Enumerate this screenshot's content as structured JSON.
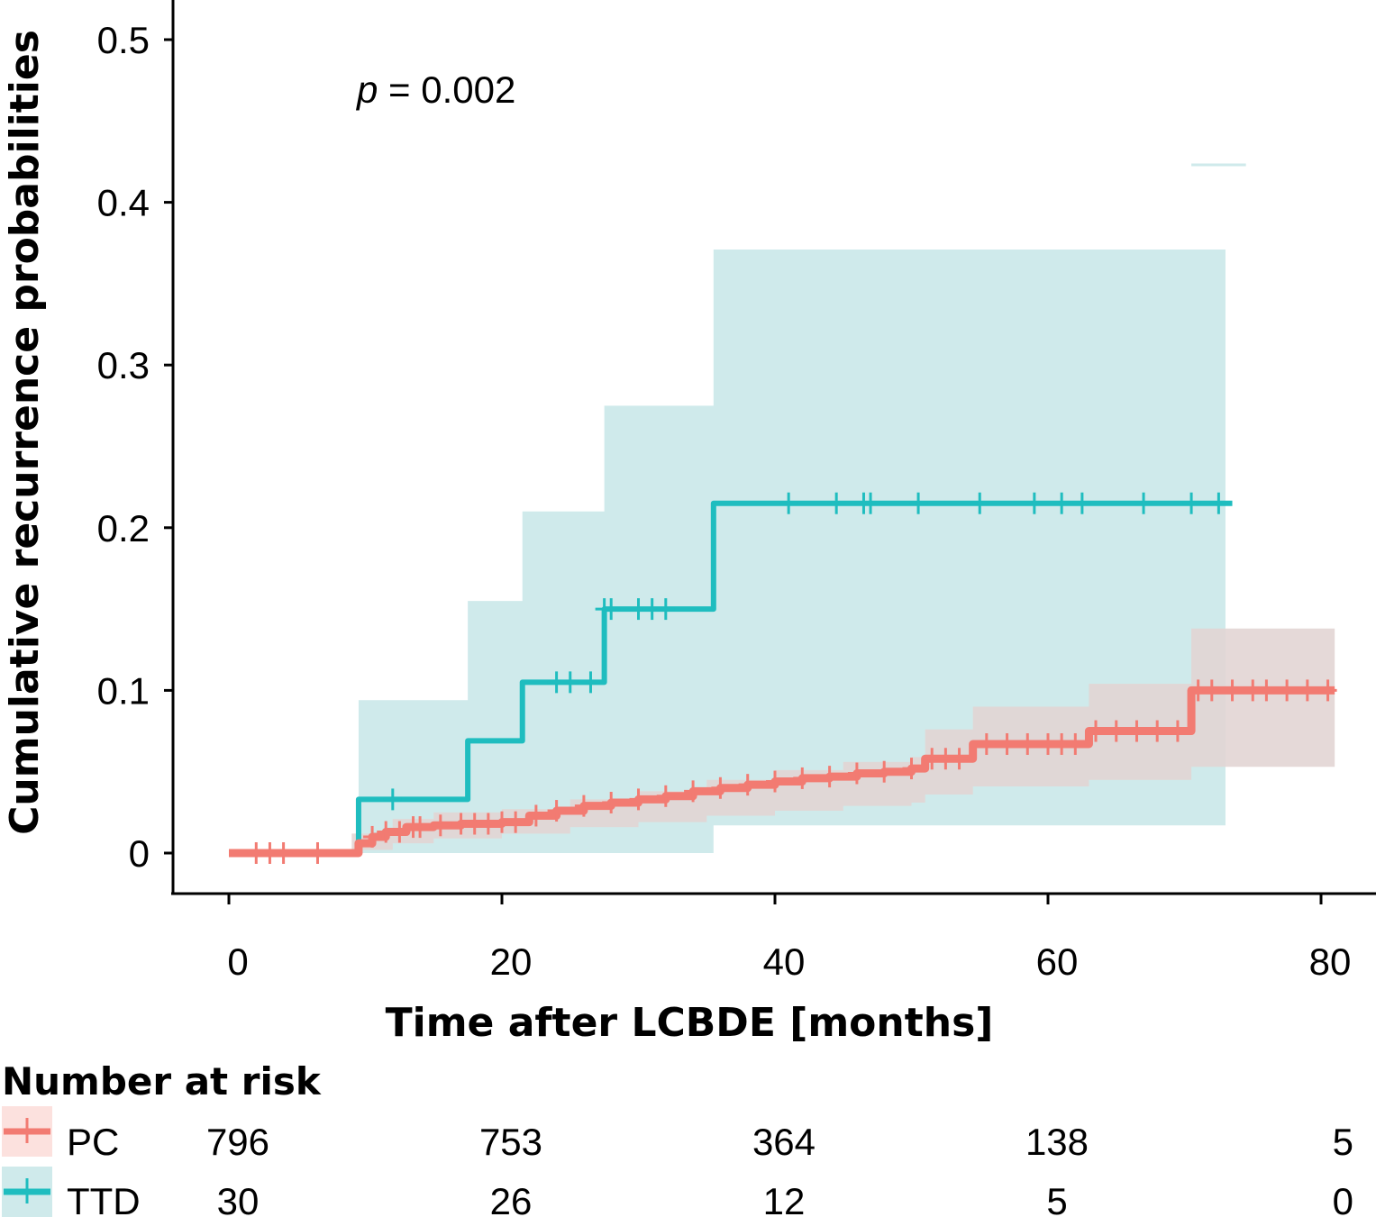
{
  "chart_data": {
    "type": "line",
    "subtype": "kaplan-meier cumulative incidence (step) with confidence bands",
    "title": "",
    "xlabel": "Time after LCBDE [months]",
    "ylabel": "Cumulative recurrence probabilities",
    "xlim": [
      -3,
      84
    ],
    "ylim": [
      -0.025,
      0.52
    ],
    "xticks": [
      0,
      20,
      40,
      60,
      80
    ],
    "xtick_labels": [
      "0",
      "20",
      "40",
      "60",
      "80"
    ],
    "yticks": [
      0,
      0.1,
      0.2,
      0.3,
      0.4,
      0.5
    ],
    "ytick_labels": [
      "0",
      "0.1",
      "0.2",
      "0.3",
      "0.4",
      "0.5"
    ],
    "grid": false,
    "annotation": {
      "text_italic": "p",
      "text_rest": " = 0.002",
      "x": 9,
      "y": 0.46
    },
    "series": [
      {
        "name": "PC",
        "color": "#F27B72",
        "band_color": "#FCE1DE",
        "steps": [
          [
            0,
            0
          ],
          [
            8.5,
            0
          ],
          [
            9.5,
            0.006
          ],
          [
            10.5,
            0.01
          ],
          [
            11.5,
            0.013
          ],
          [
            13,
            0.016
          ],
          [
            15,
            0.017
          ],
          [
            17,
            0.018
          ],
          [
            20,
            0.019
          ],
          [
            22,
            0.023
          ],
          [
            24,
            0.026
          ],
          [
            26,
            0.029
          ],
          [
            28,
            0.031
          ],
          [
            30,
            0.033
          ],
          [
            32,
            0.035
          ],
          [
            34,
            0.038
          ],
          [
            36,
            0.04
          ],
          [
            38,
            0.042
          ],
          [
            40,
            0.044
          ],
          [
            42,
            0.046
          ],
          [
            44,
            0.047
          ],
          [
            46,
            0.049
          ],
          [
            48,
            0.05
          ],
          [
            50,
            0.052
          ],
          [
            51,
            0.058
          ],
          [
            54.5,
            0.067
          ],
          [
            63,
            0.075
          ],
          [
            70.5,
            0.1
          ],
          [
            81,
            0.1
          ]
        ],
        "ci_lower": [
          [
            0,
            0
          ],
          [
            9,
            0.002
          ],
          [
            12,
            0.006
          ],
          [
            15,
            0.009
          ],
          [
            20,
            0.012
          ],
          [
            25,
            0.016
          ],
          [
            30,
            0.019
          ],
          [
            35,
            0.023
          ],
          [
            40,
            0.026
          ],
          [
            45,
            0.029
          ],
          [
            50,
            0.031
          ],
          [
            51,
            0.036
          ],
          [
            54.5,
            0.041
          ],
          [
            63,
            0.045
          ],
          [
            70.5,
            0.053
          ],
          [
            81,
            0.053
          ]
        ],
        "ci_upper": [
          [
            0,
            0
          ],
          [
            9,
            0.012
          ],
          [
            12,
            0.021
          ],
          [
            15,
            0.025
          ],
          [
            20,
            0.027
          ],
          [
            25,
            0.033
          ],
          [
            30,
            0.038
          ],
          [
            35,
            0.045
          ],
          [
            40,
            0.051
          ],
          [
            45,
            0.056
          ],
          [
            50,
            0.059
          ],
          [
            51,
            0.076
          ],
          [
            54.5,
            0.09
          ],
          [
            63,
            0.104
          ],
          [
            70.5,
            0.138
          ],
          [
            81,
            0.138
          ]
        ],
        "censor_times": [
          2,
          3,
          4,
          6.5,
          10.5,
          11.5,
          12.5,
          13.5,
          14,
          15.5,
          17,
          18,
          19,
          20,
          21,
          22.5,
          24,
          26,
          28,
          30,
          32,
          34,
          36,
          38,
          40,
          42,
          44,
          46,
          48,
          50,
          51.5,
          52.5,
          53.5,
          55.5,
          57,
          58.5,
          60,
          61,
          62,
          63.5,
          65,
          66.5,
          68,
          69.5,
          71,
          72,
          73.5,
          75,
          76,
          77.5,
          79,
          80.5
        ]
      },
      {
        "name": "TTD",
        "color": "#1FBDBF",
        "band_color": "#CFEAEB",
        "steps": [
          [
            0,
            0
          ],
          [
            9.5,
            0.033
          ],
          [
            17.5,
            0.069
          ],
          [
            21.5,
            0.105
          ],
          [
            27.5,
            0.15
          ],
          [
            35.5,
            0.215
          ],
          [
            73.5,
            0.215
          ]
        ],
        "ci_lower": [
          [
            9.5,
            0
          ],
          [
            27.5,
            0
          ],
          [
            35.5,
            0.017
          ],
          [
            73,
            0.017
          ]
        ],
        "ci_upper": [
          [
            9.5,
            0.094
          ],
          [
            17.5,
            0.155
          ],
          [
            21.5,
            0.21
          ],
          [
            27.5,
            0.275
          ],
          [
            35.5,
            0.371
          ],
          [
            73,
            0.371
          ]
        ],
        "ci_upper_extra_segment": {
          "x": [
            70.5,
            74.5
          ],
          "y": 0.423
        },
        "censor_times": [
          12,
          24,
          25,
          26.5,
          27.5,
          28,
          30,
          31,
          32,
          41,
          44.5,
          46.5,
          47,
          50.5,
          55,
          59,
          61,
          62.5,
          67,
          70.5,
          72.5
        ]
      }
    ],
    "risk_table": {
      "title": "Number at risk",
      "times": [
        0,
        20,
        40,
        60,
        80
      ],
      "rows": [
        {
          "name": "PC",
          "values": [
            "796",
            "753",
            "364",
            "138",
            "5"
          ]
        },
        {
          "name": "TTD",
          "values": [
            "30",
            "26",
            "12",
            "5",
            "0"
          ]
        }
      ]
    }
  }
}
